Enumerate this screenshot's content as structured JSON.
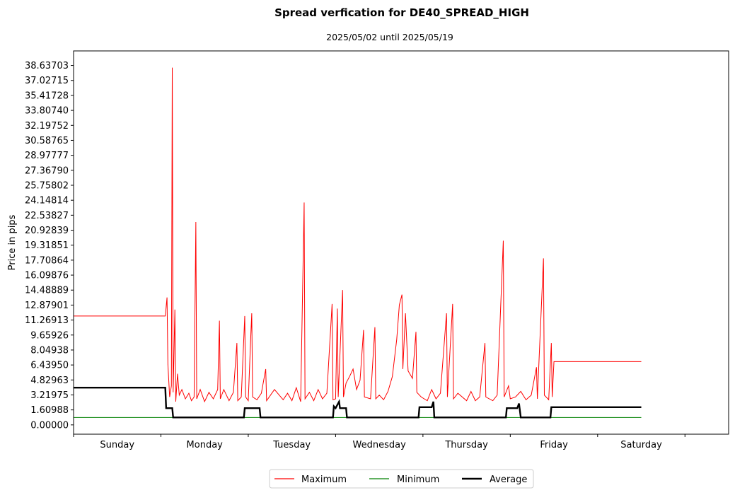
{
  "chart_data": {
    "type": "line",
    "title": "Spread verfication for DE40_SPREAD_HIGH",
    "subtitle": "2025/05/02 until 2025/05/19",
    "xlabel": "",
    "ylabel": "Price in pips",
    "categories": [
      "Sunday",
      "Monday",
      "Tuesday",
      "Wednesday",
      "Thursday",
      "Friday",
      "Saturday"
    ],
    "yticks": [
      "0.00000",
      "1.60988",
      "3.21975",
      "4.82963",
      "6.43950",
      "8.04938",
      "9.65926",
      "11.26913",
      "12.87901",
      "14.48889",
      "16.09876",
      "17.70864",
      "19.31851",
      "20.92839",
      "22.53827",
      "24.14814",
      "25.75802",
      "27.36790",
      "28.97777",
      "30.58765",
      "32.19752",
      "33.80740",
      "35.41728",
      "37.02715",
      "38.63703"
    ],
    "xlim": [
      -0.5,
      7.0
    ],
    "ylim": [
      -1.0,
      40.2
    ],
    "legend_position": "bottom-center",
    "series": [
      {
        "name": "Maximum",
        "color": "#ff0000",
        "values": [
          [
            -0.5,
            11.7
          ],
          [
            0.55,
            11.7
          ],
          [
            0.57,
            13.7
          ],
          [
            0.58,
            6.5
          ],
          [
            0.6,
            3.0
          ],
          [
            0.62,
            4.2
          ],
          [
            0.63,
            38.4
          ],
          [
            0.64,
            3.5
          ],
          [
            0.66,
            12.4
          ],
          [
            0.67,
            2.5
          ],
          [
            0.69,
            5.5
          ],
          [
            0.71,
            3.2
          ],
          [
            0.74,
            3.8
          ],
          [
            0.78,
            2.8
          ],
          [
            0.82,
            3.4
          ],
          [
            0.85,
            2.6
          ],
          [
            0.88,
            3.0
          ],
          [
            0.9,
            21.8
          ],
          [
            0.91,
            2.8
          ],
          [
            0.95,
            3.8
          ],
          [
            1.0,
            2.5
          ],
          [
            1.05,
            3.5
          ],
          [
            1.1,
            2.8
          ],
          [
            1.15,
            3.8
          ],
          [
            1.17,
            11.2
          ],
          [
            1.18,
            2.8
          ],
          [
            1.22,
            3.8
          ],
          [
            1.28,
            2.6
          ],
          [
            1.33,
            3.5
          ],
          [
            1.37,
            8.8
          ],
          [
            1.38,
            2.6
          ],
          [
            1.42,
            3.0
          ],
          [
            1.46,
            11.7
          ],
          [
            1.47,
            3.0
          ],
          [
            1.5,
            2.6
          ],
          [
            1.53,
            9.8
          ],
          [
            1.54,
            12.0
          ],
          [
            1.55,
            3.0
          ],
          [
            1.6,
            2.7
          ],
          [
            1.65,
            3.4
          ],
          [
            1.7,
            6.0
          ],
          [
            1.71,
            2.6
          ],
          [
            1.8,
            3.8
          ],
          [
            1.9,
            2.7
          ],
          [
            1.95,
            3.4
          ],
          [
            2.0,
            2.6
          ],
          [
            2.05,
            4.0
          ],
          [
            2.1,
            2.5
          ],
          [
            2.14,
            23.9
          ],
          [
            2.15,
            2.8
          ],
          [
            2.2,
            3.5
          ],
          [
            2.25,
            2.6
          ],
          [
            2.3,
            3.8
          ],
          [
            2.35,
            2.8
          ],
          [
            2.4,
            3.4
          ],
          [
            2.46,
            13.0
          ],
          [
            2.47,
            2.7
          ],
          [
            2.5,
            2.8
          ],
          [
            2.52,
            12.5
          ],
          [
            2.53,
            3.0
          ],
          [
            2.58,
            14.5
          ],
          [
            2.59,
            3.0
          ],
          [
            2.62,
            4.5
          ],
          [
            2.66,
            5.2
          ],
          [
            2.7,
            6.0
          ],
          [
            2.74,
            3.8
          ],
          [
            2.78,
            4.8
          ],
          [
            2.82,
            10.2
          ],
          [
            2.83,
            3.0
          ],
          [
            2.9,
            2.8
          ],
          [
            2.95,
            10.5
          ],
          [
            2.96,
            2.8
          ],
          [
            3.0,
            3.2
          ],
          [
            3.05,
            2.7
          ],
          [
            3.1,
            3.6
          ],
          [
            3.15,
            5.2
          ],
          [
            3.2,
            9.2
          ],
          [
            3.23,
            12.9
          ],
          [
            3.26,
            14.0
          ],
          [
            3.27,
            6.0
          ],
          [
            3.3,
            12.0
          ],
          [
            3.33,
            5.8
          ],
          [
            3.38,
            5.0
          ],
          [
            3.42,
            10.0
          ],
          [
            3.43,
            3.5
          ],
          [
            3.48,
            3.0
          ],
          [
            3.55,
            2.6
          ],
          [
            3.6,
            3.8
          ],
          [
            3.65,
            2.8
          ],
          [
            3.7,
            3.4
          ],
          [
            3.77,
            12.0
          ],
          [
            3.78,
            3.0
          ],
          [
            3.84,
            13.0
          ],
          [
            3.85,
            2.8
          ],
          [
            3.9,
            3.4
          ],
          [
            4.0,
            2.6
          ],
          [
            4.05,
            3.6
          ],
          [
            4.1,
            2.6
          ],
          [
            4.15,
            3.0
          ],
          [
            4.21,
            8.8
          ],
          [
            4.22,
            3.0
          ],
          [
            4.3,
            2.6
          ],
          [
            4.35,
            3.2
          ],
          [
            4.42,
            19.8
          ],
          [
            4.43,
            3.0
          ],
          [
            4.48,
            4.2
          ],
          [
            4.5,
            2.8
          ],
          [
            4.56,
            3.0
          ],
          [
            4.62,
            3.6
          ],
          [
            4.68,
            2.7
          ],
          [
            4.74,
            3.2
          ],
          [
            4.8,
            6.2
          ],
          [
            4.81,
            2.8
          ],
          [
            4.88,
            17.9
          ],
          [
            4.89,
            3.2
          ],
          [
            4.94,
            2.7
          ],
          [
            4.97,
            8.8
          ],
          [
            4.98,
            3.0
          ],
          [
            5.0,
            6.8
          ],
          [
            6.0,
            6.8
          ]
        ]
      },
      {
        "name": "Minimum",
        "color": "#008000",
        "values": [
          [
            -0.5,
            0.8
          ],
          [
            6.0,
            0.8
          ]
        ]
      },
      {
        "name": "Average",
        "color": "#000000",
        "values": [
          [
            -0.5,
            4.0
          ],
          [
            0.55,
            4.0
          ],
          [
            0.56,
            1.8
          ],
          [
            0.63,
            1.8
          ],
          [
            0.64,
            0.8
          ],
          [
            1.45,
            0.8
          ],
          [
            1.46,
            1.8
          ],
          [
            1.63,
            1.8
          ],
          [
            1.64,
            0.8
          ],
          [
            2.47,
            0.8
          ],
          [
            2.48,
            2.0
          ],
          [
            2.5,
            1.8
          ],
          [
            2.54,
            2.5
          ],
          [
            2.55,
            1.8
          ],
          [
            2.62,
            1.8
          ],
          [
            2.63,
            0.8
          ],
          [
            3.45,
            0.8
          ],
          [
            3.46,
            1.9
          ],
          [
            3.6,
            1.9
          ],
          [
            3.62,
            2.5
          ],
          [
            3.63,
            0.8
          ],
          [
            4.45,
            0.8
          ],
          [
            4.46,
            1.8
          ],
          [
            4.58,
            1.8
          ],
          [
            4.6,
            2.3
          ],
          [
            4.62,
            0.8
          ],
          [
            4.96,
            0.8
          ],
          [
            4.97,
            1.9
          ],
          [
            6.0,
            1.9
          ]
        ]
      }
    ]
  }
}
